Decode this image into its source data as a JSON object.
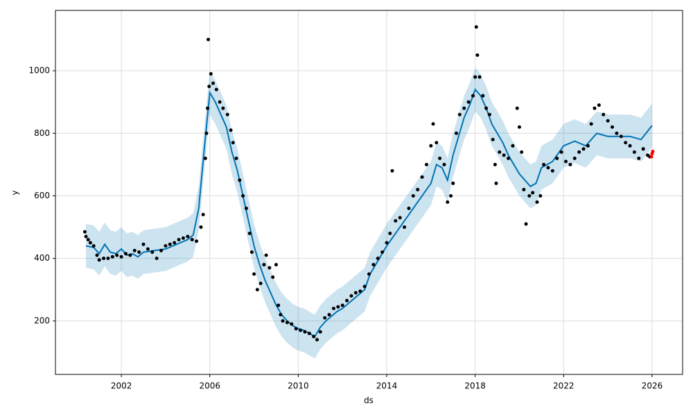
{
  "chart_data": {
    "type": "forecast",
    "x_label": "ds",
    "y_label": "y",
    "xlim": [
      1999.02,
      2027.38
    ],
    "ylim": [
      29,
      1193
    ],
    "xticks": [
      2002,
      2006,
      2010,
      2014,
      2018,
      2022,
      2026
    ],
    "yticks": [
      200,
      400,
      600,
      800,
      1000
    ],
    "grid": true,
    "series": [
      {
        "type": "band",
        "color": "#0072B2",
        "x": [
          2000.4,
          2000.75,
          2001.0,
          2001.25,
          2001.5,
          2001.75,
          2002.0,
          2002.25,
          2002.5,
          2002.75,
          2003.0,
          2003.5,
          2004.0,
          2004.5,
          2005.0,
          2005.25,
          2005.5,
          2005.75,
          2006.0,
          2006.25,
          2006.5,
          2006.75,
          2007.0,
          2007.25,
          2007.5,
          2007.75,
          2008.0,
          2008.25,
          2008.5,
          2008.75,
          2009.0,
          2009.25,
          2009.5,
          2009.75,
          2010.0,
          2010.25,
          2010.5,
          2010.75,
          2011.0,
          2011.25,
          2011.5,
          2011.75,
          2012.0,
          2012.5,
          2013.0,
          2013.25,
          2013.5,
          2014.0,
          2014.5,
          2015.0,
          2015.5,
          2016.0,
          2016.25,
          2016.5,
          2016.75,
          2017.0,
          2017.25,
          2017.5,
          2017.75,
          2018.0,
          2018.25,
          2018.5,
          2018.75,
          2019.0,
          2019.25,
          2019.5,
          2019.75,
          2020.0,
          2020.25,
          2020.5,
          2020.75,
          2021.0,
          2021.25,
          2021.5,
          2022.0,
          2022.5,
          2023.0,
          2023.5,
          2024.0,
          2024.5,
          2025.0,
          2025.5,
          2026.0
        ],
        "values": [
          440,
          435,
          415,
          445,
          420,
          415,
          430,
          410,
          415,
          405,
          420,
          425,
          430,
          445,
          460,
          475,
          560,
          750,
          930,
          900,
          860,
          820,
          740,
          680,
          600,
          520,
          440,
          380,
          330,
          290,
          250,
          220,
          200,
          185,
          175,
          170,
          160,
          150,
          180,
          200,
          215,
          230,
          240,
          270,
          300,
          350,
          380,
          440,
          490,
          540,
          590,
          640,
          700,
          690,
          650,
          730,
          790,
          850,
          890,
          940,
          920,
          880,
          830,
          800,
          770,
          730,
          700,
          670,
          650,
          630,
          640,
          690,
          700,
          710,
          760,
          775,
          760,
          800,
          790,
          790,
          790,
          780,
          825
        ],
        "lower": [
          370,
          365,
          345,
          375,
          350,
          345,
          360,
          340,
          345,
          335,
          350,
          355,
          360,
          375,
          390,
          405,
          490,
          680,
          860,
          830,
          790,
          750,
          670,
          610,
          530,
          450,
          370,
          310,
          260,
          220,
          180,
          150,
          130,
          115,
          105,
          100,
          90,
          80,
          110,
          130,
          145,
          160,
          170,
          200,
          230,
          280,
          310,
          370,
          420,
          470,
          520,
          570,
          630,
          620,
          580,
          660,
          720,
          780,
          820,
          870,
          850,
          810,
          760,
          730,
          700,
          660,
          630,
          600,
          580,
          560,
          570,
          620,
          630,
          640,
          690,
          705,
          690,
          730,
          720,
          720,
          720,
          710,
          755
        ],
        "upper": [
          510,
          505,
          485,
          515,
          490,
          485,
          500,
          480,
          485,
          475,
          490,
          495,
          500,
          515,
          530,
          545,
          630,
          820,
          1000,
          970,
          930,
          890,
          810,
          750,
          670,
          590,
          510,
          450,
          400,
          360,
          320,
          290,
          270,
          255,
          245,
          240,
          230,
          220,
          250,
          270,
          285,
          300,
          310,
          340,
          370,
          420,
          450,
          510,
          560,
          610,
          660,
          710,
          770,
          760,
          720,
          800,
          860,
          920,
          960,
          1010,
          990,
          950,
          900,
          870,
          840,
          800,
          770,
          740,
          720,
          700,
          710,
          760,
          770,
          780,
          830,
          845,
          830,
          870,
          860,
          860,
          860,
          850,
          895
        ]
      },
      {
        "type": "line",
        "color": "#0072B2",
        "x": [
          2000.4,
          2000.75,
          2001.0,
          2001.25,
          2001.5,
          2001.75,
          2002.0,
          2002.25,
          2002.5,
          2002.75,
          2003.0,
          2003.5,
          2004.0,
          2004.5,
          2005.0,
          2005.25,
          2005.5,
          2005.75,
          2006.0,
          2006.25,
          2006.5,
          2006.75,
          2007.0,
          2007.25,
          2007.5,
          2007.75,
          2008.0,
          2008.25,
          2008.5,
          2008.75,
          2009.0,
          2009.25,
          2009.5,
          2009.75,
          2010.0,
          2010.25,
          2010.5,
          2010.75,
          2011.0,
          2011.25,
          2011.5,
          2011.75,
          2012.0,
          2012.5,
          2013.0,
          2013.25,
          2013.5,
          2014.0,
          2014.5,
          2015.0,
          2015.5,
          2016.0,
          2016.25,
          2016.5,
          2016.75,
          2017.0,
          2017.25,
          2017.5,
          2017.75,
          2018.0,
          2018.25,
          2018.5,
          2018.75,
          2019.0,
          2019.25,
          2019.5,
          2019.75,
          2020.0,
          2020.25,
          2020.5,
          2020.75,
          2021.0,
          2021.25,
          2021.5,
          2022.0,
          2022.5,
          2023.0,
          2023.5,
          2024.0,
          2024.5,
          2025.0,
          2025.5,
          2026.0
        ],
        "values": [
          440,
          435,
          415,
          445,
          420,
          415,
          430,
          410,
          415,
          405,
          420,
          425,
          430,
          445,
          460,
          475,
          560,
          750,
          930,
          900,
          860,
          820,
          740,
          680,
          600,
          520,
          440,
          380,
          330,
          290,
          250,
          220,
          200,
          185,
          175,
          170,
          160,
          150,
          180,
          200,
          215,
          230,
          240,
          270,
          300,
          350,
          380,
          440,
          490,
          540,
          590,
          640,
          700,
          690,
          650,
          730,
          790,
          850,
          890,
          940,
          920,
          880,
          830,
          800,
          770,
          730,
          700,
          670,
          650,
          630,
          640,
          690,
          700,
          710,
          760,
          775,
          760,
          800,
          790,
          790,
          790,
          780,
          825
        ]
      },
      {
        "type": "scatter",
        "color": "#000000",
        "x": [
          2000.35,
          2000.4,
          2000.5,
          2000.6,
          2000.75,
          2000.9,
          2001.0,
          2001.2,
          2001.4,
          2001.6,
          2001.8,
          2002.0,
          2002.2,
          2002.4,
          2002.6,
          2002.8,
          2003.0,
          2003.2,
          2003.4,
          2003.6,
          2003.8,
          2004.0,
          2004.2,
          2004.4,
          2004.6,
          2004.8,
          2005.0,
          2005.2,
          2005.4,
          2005.6,
          2005.7,
          2005.8,
          2005.85,
          2005.9,
          2005.93,
          2005.97,
          2006.05,
          2006.15,
          2006.3,
          2006.45,
          2006.6,
          2006.8,
          2006.95,
          2007.05,
          2007.2,
          2007.35,
          2007.5,
          2007.65,
          2007.8,
          2007.9,
          2008.0,
          2008.15,
          2008.3,
          2008.45,
          2008.55,
          2008.7,
          2008.85,
          2009.0,
          2009.1,
          2009.2,
          2009.3,
          2009.5,
          2009.7,
          2009.9,
          2010.1,
          2010.3,
          2010.5,
          2010.7,
          2010.85,
          2011.0,
          2011.2,
          2011.4,
          2011.6,
          2011.8,
          2012.0,
          2012.2,
          2012.4,
          2012.6,
          2012.8,
          2013.0,
          2013.2,
          2013.4,
          2013.6,
          2013.8,
          2014.0,
          2014.15,
          2014.25,
          2014.4,
          2014.6,
          2014.8,
          2015.0,
          2015.2,
          2015.4,
          2015.6,
          2015.8,
          2016.0,
          2016.1,
          2016.25,
          2016.4,
          2016.6,
          2016.75,
          2016.9,
          2017.0,
          2017.15,
          2017.3,
          2017.5,
          2017.7,
          2017.9,
          2018.0,
          2018.05,
          2018.1,
          2018.2,
          2018.35,
          2018.5,
          2018.65,
          2018.8,
          2018.9,
          2018.95,
          2019.1,
          2019.3,
          2019.5,
          2019.7,
          2019.9,
          2020.0,
          2020.1,
          2020.2,
          2020.3,
          2020.45,
          2020.6,
          2020.8,
          2020.95,
          2021.1,
          2021.3,
          2021.5,
          2021.7,
          2021.9,
          2022.1,
          2022.3,
          2022.5,
          2022.7,
          2022.9,
          2023.1,
          2023.25,
          2023.4,
          2023.6,
          2023.8,
          2024.0,
          2024.2,
          2024.4,
          2024.6,
          2024.8,
          2025.0,
          2025.2,
          2025.4,
          2025.6,
          2025.8,
          2025.9
        ],
        "values": [
          485,
          470,
          460,
          450,
          440,
          410,
          395,
          400,
          400,
          405,
          410,
          405,
          415,
          410,
          425,
          420,
          445,
          430,
          420,
          400,
          425,
          440,
          445,
          450,
          460,
          465,
          470,
          460,
          455,
          500,
          540,
          720,
          800,
          880,
          1100,
          950,
          990,
          960,
          940,
          900,
          880,
          860,
          810,
          770,
          720,
          650,
          600,
          560,
          480,
          420,
          350,
          300,
          320,
          380,
          410,
          370,
          340,
          380,
          250,
          220,
          200,
          195,
          190,
          175,
          170,
          165,
          160,
          150,
          140,
          165,
          210,
          220,
          240,
          245,
          250,
          265,
          280,
          290,
          295,
          310,
          350,
          380,
          400,
          420,
          450,
          480,
          680,
          520,
          530,
          500,
          560,
          600,
          620,
          660,
          700,
          760,
          830,
          770,
          720,
          700,
          580,
          600,
          640,
          800,
          860,
          880,
          900,
          920,
          980,
          1140,
          1050,
          980,
          920,
          880,
          860,
          780,
          700,
          640,
          740,
          730,
          720,
          760,
          880,
          820,
          740,
          620,
          510,
          600,
          610,
          580,
          600,
          700,
          690,
          680,
          720,
          740,
          710,
          700,
          720,
          740,
          750,
          760,
          830,
          880,
          890,
          860,
          840,
          820,
          800,
          790,
          770,
          760,
          740,
          720,
          750,
          730,
          725
        ]
      },
      {
        "type": "scatter",
        "color": "#ff0000",
        "x": [
          2025.97,
          2026.0,
          2026.03
        ],
        "values": [
          725,
          735,
          742
        ]
      }
    ]
  }
}
